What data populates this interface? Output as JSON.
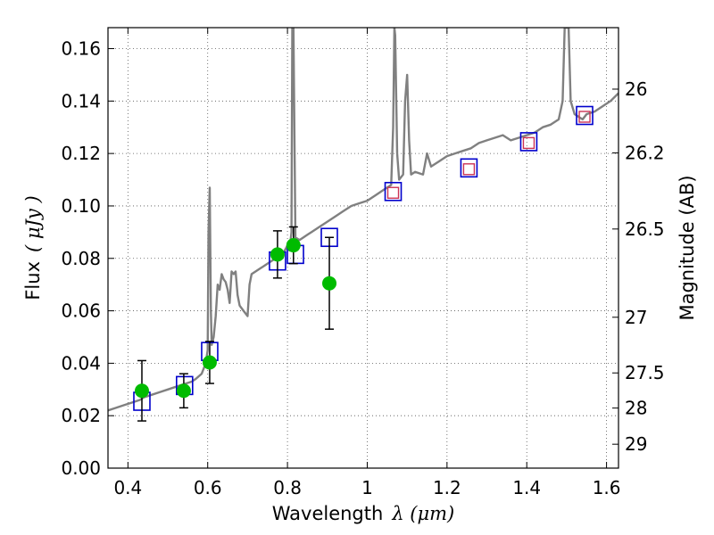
{
  "chart_data": {
    "type": "scatter",
    "xlabel_prefix": "Wavelength",
    "xlabel_math": "λ (μm)",
    "ylabel_prefix": "Flux",
    "ylabel_math": "( μJy )",
    "y2label": "Magnitude (AB)",
    "xlim": [
      0.35,
      1.63
    ],
    "ylim": [
      0.0,
      0.168
    ],
    "grid": true,
    "xticks": [
      {
        "v": 0.4,
        "label": "0.4"
      },
      {
        "v": 0.6,
        "label": "0.6"
      },
      {
        "v": 0.8,
        "label": "0.8"
      },
      {
        "v": 1.0,
        "label": "1"
      },
      {
        "v": 1.2,
        "label": "1.2"
      },
      {
        "v": 1.4,
        "label": "1.4"
      },
      {
        "v": 1.6,
        "label": "1.6"
      }
    ],
    "yticks": [
      {
        "v": 0.0,
        "label": "0.00"
      },
      {
        "v": 0.02,
        "label": "0.02"
      },
      {
        "v": 0.04,
        "label": "0.04"
      },
      {
        "v": 0.06,
        "label": "0.06"
      },
      {
        "v": 0.08,
        "label": "0.08"
      },
      {
        "v": 0.1,
        "label": "0.10"
      },
      {
        "v": 0.12,
        "label": "0.12"
      },
      {
        "v": 0.14,
        "label": "0.14"
      },
      {
        "v": 0.16,
        "label": "0.16"
      }
    ],
    "y2ticks": [
      {
        "mag": 26.0,
        "label": "26"
      },
      {
        "mag": 26.2,
        "label": "26.2"
      },
      {
        "mag": 26.5,
        "label": "26.5"
      },
      {
        "mag": 27.0,
        "label": "27"
      },
      {
        "mag": 27.5,
        "label": "27.5"
      },
      {
        "mag": 28.0,
        "label": "28"
      },
      {
        "mag": 29.0,
        "label": "29"
      }
    ],
    "series": [
      {
        "kind": "spectrum",
        "color": "#808080",
        "points": [
          [
            0.35,
            0.022
          ],
          [
            0.37,
            0.023
          ],
          [
            0.39,
            0.024
          ],
          [
            0.41,
            0.025
          ],
          [
            0.43,
            0.026
          ],
          [
            0.44,
            0.027
          ],
          [
            0.46,
            0.028
          ],
          [
            0.48,
            0.029
          ],
          [
            0.5,
            0.03
          ],
          [
            0.52,
            0.031
          ],
          [
            0.54,
            0.032
          ],
          [
            0.56,
            0.033
          ],
          [
            0.57,
            0.034
          ],
          [
            0.585,
            0.036
          ],
          [
            0.595,
            0.04
          ],
          [
            0.6,
            0.045
          ],
          [
            0.602,
            0.09
          ],
          [
            0.605,
            0.107
          ],
          [
            0.608,
            0.06
          ],
          [
            0.61,
            0.047
          ],
          [
            0.615,
            0.05
          ],
          [
            0.62,
            0.058
          ],
          [
            0.625,
            0.07
          ],
          [
            0.63,
            0.068
          ],
          [
            0.635,
            0.074
          ],
          [
            0.64,
            0.072
          ],
          [
            0.645,
            0.071
          ],
          [
            0.65,
            0.068
          ],
          [
            0.655,
            0.063
          ],
          [
            0.66,
            0.075
          ],
          [
            0.665,
            0.074
          ],
          [
            0.67,
            0.075
          ],
          [
            0.675,
            0.066
          ],
          [
            0.68,
            0.062
          ],
          [
            0.69,
            0.06
          ],
          [
            0.7,
            0.058
          ],
          [
            0.705,
            0.07
          ],
          [
            0.71,
            0.074
          ],
          [
            0.72,
            0.075
          ],
          [
            0.73,
            0.076
          ],
          [
            0.74,
            0.077
          ],
          [
            0.75,
            0.078
          ],
          [
            0.76,
            0.079
          ],
          [
            0.77,
            0.08
          ],
          [
            0.78,
            0.081
          ],
          [
            0.79,
            0.082
          ],
          [
            0.8,
            0.085
          ],
          [
            0.805,
            0.083
          ],
          [
            0.81,
            0.09
          ],
          [
            0.812,
            0.168
          ],
          [
            0.815,
            0.168
          ],
          [
            0.818,
            0.12
          ],
          [
            0.82,
            0.088
          ],
          [
            0.83,
            0.087
          ],
          [
            0.84,
            0.088
          ],
          [
            0.85,
            0.089
          ],
          [
            0.86,
            0.09
          ],
          [
            0.88,
            0.092
          ],
          [
            0.9,
            0.094
          ],
          [
            0.92,
            0.096
          ],
          [
            0.94,
            0.098
          ],
          [
            0.96,
            0.1
          ],
          [
            0.98,
            0.101
          ],
          [
            1.0,
            0.102
          ],
          [
            1.02,
            0.104
          ],
          [
            1.04,
            0.106
          ],
          [
            1.05,
            0.107
          ],
          [
            1.06,
            0.108
          ],
          [
            1.065,
            0.13
          ],
          [
            1.068,
            0.168
          ],
          [
            1.07,
            0.165
          ],
          [
            1.075,
            0.12
          ],
          [
            1.08,
            0.11
          ],
          [
            1.09,
            0.112
          ],
          [
            1.095,
            0.14
          ],
          [
            1.1,
            0.15
          ],
          [
            1.105,
            0.125
          ],
          [
            1.11,
            0.112
          ],
          [
            1.12,
            0.113
          ],
          [
            1.14,
            0.112
          ],
          [
            1.15,
            0.12
          ],
          [
            1.16,
            0.115
          ],
          [
            1.18,
            0.117
          ],
          [
            1.2,
            0.119
          ],
          [
            1.22,
            0.12
          ],
          [
            1.24,
            0.121
          ],
          [
            1.26,
            0.122
          ],
          [
            1.28,
            0.124
          ],
          [
            1.3,
            0.125
          ],
          [
            1.32,
            0.126
          ],
          [
            1.34,
            0.127
          ],
          [
            1.36,
            0.125
          ],
          [
            1.38,
            0.126
          ],
          [
            1.4,
            0.127
          ],
          [
            1.42,
            0.128
          ],
          [
            1.44,
            0.13
          ],
          [
            1.46,
            0.131
          ],
          [
            1.48,
            0.133
          ],
          [
            1.49,
            0.14
          ],
          [
            1.495,
            0.168
          ],
          [
            1.505,
            0.168
          ],
          [
            1.51,
            0.14
          ],
          [
            1.52,
            0.135
          ],
          [
            1.53,
            0.134
          ],
          [
            1.54,
            0.133
          ],
          [
            1.55,
            0.135
          ],
          [
            1.57,
            0.136
          ],
          [
            1.59,
            0.138
          ],
          [
            1.61,
            0.14
          ],
          [
            1.63,
            0.143
          ]
        ]
      },
      {
        "kind": "model-boxes",
        "color": "#0000cc",
        "points": [
          [
            0.435,
            0.0255
          ],
          [
            0.542,
            0.0315
          ],
          [
            0.605,
            0.0445
          ],
          [
            0.775,
            0.079
          ],
          [
            0.82,
            0.0815
          ],
          [
            0.905,
            0.088
          ],
          [
            1.065,
            0.1055
          ],
          [
            1.255,
            0.1145
          ],
          [
            1.405,
            0.1245
          ],
          [
            1.545,
            0.1345
          ]
        ]
      },
      {
        "kind": "model-boxes-inner",
        "color": "#cc3355",
        "points": [
          [
            1.065,
            0.105
          ],
          [
            1.255,
            0.114
          ],
          [
            1.405,
            0.124
          ],
          [
            1.545,
            0.134
          ]
        ]
      },
      {
        "kind": "observed",
        "color": "#00bb00",
        "points": [
          {
            "x": 0.435,
            "y": 0.0295,
            "err": 0.0115
          },
          {
            "x": 0.54,
            "y": 0.0295,
            "err": 0.0065
          },
          {
            "x": 0.605,
            "y": 0.0403,
            "err": 0.008
          },
          {
            "x": 0.775,
            "y": 0.0815,
            "err": 0.009
          },
          {
            "x": 0.815,
            "y": 0.085,
            "err": 0.007
          },
          {
            "x": 0.905,
            "y": 0.0705,
            "err": 0.0175
          }
        ]
      }
    ]
  }
}
